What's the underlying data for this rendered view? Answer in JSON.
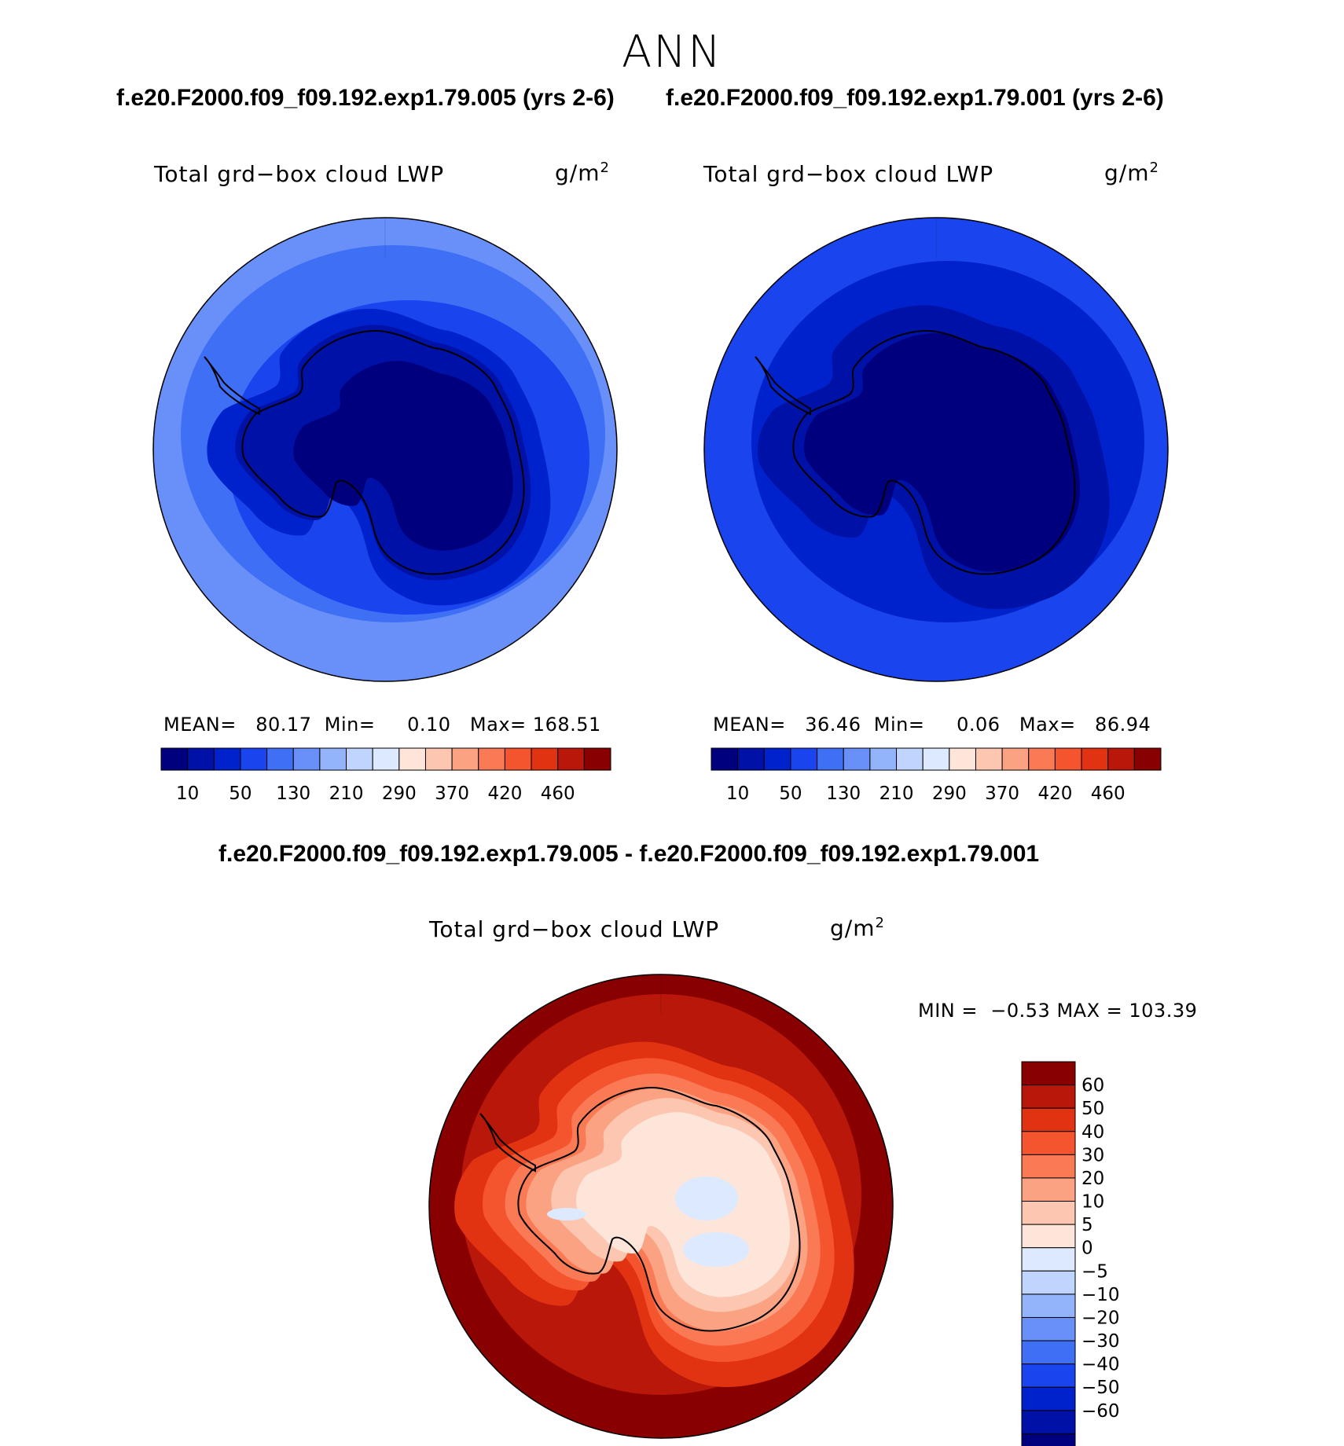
{
  "season": "ANN",
  "case_titles": {
    "top_left": "f.e20.F2000.f09_f09.192.exp1.79.005 (yrs 2-6)",
    "top_right": "f.e20.F2000.f09_f09.192.exp1.79.001 (yrs 2-6)",
    "difference": "f.e20.F2000.f09_f09.192.exp1.79.005 - f.e20.F2000.f09_f09.192.exp1.79.001"
  },
  "colors": {
    "abs_scale": [
      "#00007f",
      "#0011a8",
      "#0022cc",
      "#1a44ee",
      "#3f6ff5",
      "#6890f8",
      "#93b4fb",
      "#c0d5fd",
      "#dde9fe",
      "#fde6d9",
      "#fcc6b0",
      "#fba282",
      "#f97a55",
      "#f5552e",
      "#e13212",
      "#b8170a",
      "#890000"
    ],
    "diff_scale": [
      "#890000",
      "#b8170a",
      "#e13212",
      "#f5552e",
      "#f97a55",
      "#fba282",
      "#fcc6b0",
      "#fde6d9",
      "#dde9fe",
      "#c0d5fd",
      "#93b4fb",
      "#6890f8",
      "#3f6ff5",
      "#1a44ee",
      "#0022cc",
      "#0011a8",
      "#00007f"
    ]
  },
  "chart_data": [
    {
      "type": "heatmap",
      "projection": "south-polar-stereographic",
      "label": "Total grd−box cloud LWP",
      "units": "g/m",
      "units_power": "2",
      "stats": {
        "mean_label": "MEAN=",
        "mean": "80.17",
        "min_label": "Min=",
        "min": "0.10",
        "max_label": "Max=",
        "max": "168.51"
      },
      "contour_levels": [
        5,
        10,
        25,
        50,
        90,
        130,
        170,
        210,
        250,
        290,
        330,
        370,
        395,
        420,
        440,
        460
      ],
      "colorbar_tick_labels": [
        "10",
        "50",
        "130",
        "210",
        "290",
        "370",
        "420",
        "460"
      ],
      "field_description_levels": {
        "antarctic_interior": 5,
        "coast": 25,
        "ocean_near": 50,
        "ocean_far": 90
      },
      "colorbar_orientation": "horizontal"
    },
    {
      "type": "heatmap",
      "projection": "south-polar-stereographic",
      "label": "Total grd−box cloud LWP",
      "units": "g/m",
      "units_power": "2",
      "stats": {
        "mean_label": "MEAN=",
        "mean": "36.46",
        "min_label": "Min=",
        "min": "0.06",
        "max_label": "Max=",
        "max": "86.94"
      },
      "contour_levels": [
        5,
        10,
        25,
        50,
        90,
        130,
        170,
        210,
        250,
        290,
        330,
        370,
        395,
        420,
        440,
        460
      ],
      "colorbar_tick_labels": [
        "10",
        "50",
        "130",
        "210",
        "290",
        "370",
        "420",
        "460"
      ],
      "colorbar_orientation": "horizontal"
    },
    {
      "type": "heatmap",
      "projection": "south-polar-stereographic",
      "label": "Total grd−box cloud LWP",
      "units": "g/m",
      "units_power": "2",
      "stats": {
        "min_label": "MIN =",
        "min": "−0.53",
        "max_label": "MAX =",
        "max": "103.39"
      },
      "contour_levels": [
        -60,
        -50,
        -40,
        -30,
        -20,
        -10,
        -5,
        0,
        5,
        10,
        20,
        30,
        40,
        50,
        60
      ],
      "colorbar_tick_labels": [
        "60",
        "50",
        "40",
        "30",
        "20",
        "10",
        "5",
        "0",
        "−5",
        "−10",
        "−20",
        "−30",
        "−40",
        "−50",
        "−60"
      ],
      "colorbar_orientation": "vertical"
    }
  ]
}
